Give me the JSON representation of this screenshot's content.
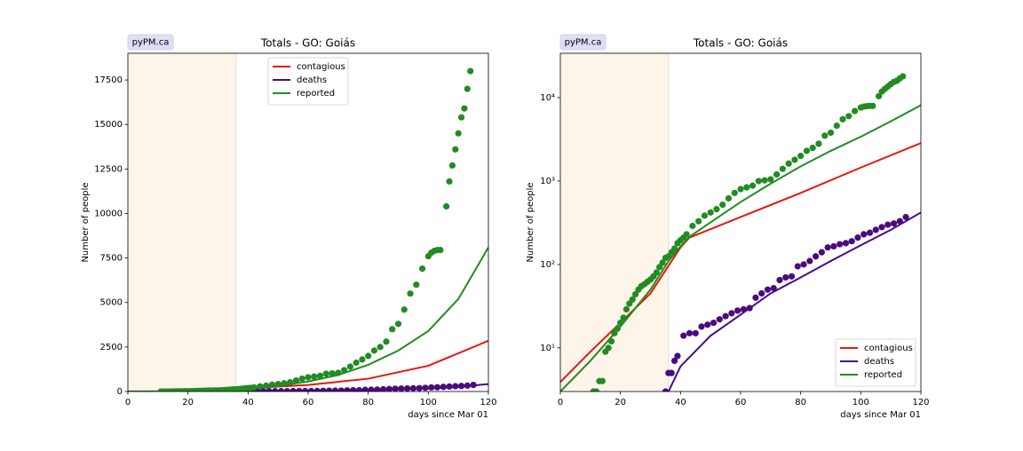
{
  "chart_data": [
    {
      "type": "scatter_line",
      "title": "Totals - GO: Goiás",
      "annotation": "pyPM.ca",
      "xlabel": "days since Mar 01",
      "ylabel": "Number of people",
      "xlim": [
        0,
        120
      ],
      "xticks": [
        0,
        20,
        40,
        60,
        80,
        100,
        120
      ],
      "ylim": [
        0,
        19000
      ],
      "yticks": [
        0,
        2500,
        5000,
        7500,
        10000,
        12500,
        15000,
        17500
      ],
      "log_y": false,
      "legend": "upper center",
      "shade_x": [
        0,
        36
      ],
      "shade_color": "#fdf5ea",
      "series": [
        {
          "name": "contagious",
          "color": "#e8160e",
          "x": [
            0,
            10,
            20,
            30,
            35,
            40,
            43,
            60,
            80,
            100,
            120
          ],
          "values": [
            3.9,
            9,
            20,
            45,
            85,
            160,
            210,
            370,
            720,
            1450,
            2850
          ]
        },
        {
          "name": "deaths",
          "color": "#4b0a7d",
          "x": [
            36,
            40,
            50,
            60,
            70,
            80,
            90,
            100,
            110,
            120
          ],
          "values": [
            3,
            6,
            14,
            25,
            45,
            70,
            110,
            170,
            260,
            420
          ],
          "points_x": [
            35,
            36,
            37,
            38,
            39,
            41,
            43,
            45,
            47,
            49,
            51,
            53,
            55,
            57,
            59,
            61,
            63,
            65,
            67,
            69,
            71,
            73,
            75,
            77,
            79,
            81,
            83,
            85,
            87,
            89,
            91,
            93,
            95,
            97,
            99,
            101,
            103,
            105,
            107,
            109,
            111,
            113,
            115
          ],
          "points": [
            3,
            5,
            5,
            7,
            8,
            14,
            15,
            15,
            18,
            19,
            20,
            22,
            24,
            26,
            28,
            29,
            30,
            40,
            45,
            50,
            52,
            65,
            70,
            72,
            95,
            100,
            110,
            125,
            140,
            160,
            165,
            175,
            180,
            190,
            210,
            230,
            240,
            260,
            280,
            300,
            310,
            330,
            370
          ]
        },
        {
          "name": "reported",
          "color": "#228b22",
          "x": [
            0,
            10,
            20,
            30,
            36,
            40,
            43,
            50,
            60,
            70,
            80,
            90,
            100,
            110,
            120
          ],
          "values": [
            3,
            7,
            18,
            50,
            110,
            165,
            215,
            320,
            560,
            930,
            1500,
            2300,
            3400,
            5200,
            8100
          ],
          "points_x": [
            11,
            12,
            13,
            14,
            15,
            16,
            17,
            18,
            19,
            20,
            21,
            22,
            23,
            24,
            25,
            26,
            27,
            28,
            29,
            30,
            31,
            32,
            33,
            34,
            35,
            36,
            37,
            38,
            39,
            40,
            41,
            42,
            44,
            46,
            48,
            50,
            52,
            54,
            56,
            58,
            60,
            62,
            64,
            66,
            68,
            70,
            72,
            74,
            76,
            78,
            80,
            82,
            84,
            86,
            88,
            90,
            92,
            94,
            96,
            98,
            100,
            101,
            102,
            103,
            104,
            106,
            107,
            108,
            109,
            110,
            111,
            112,
            113,
            114
          ],
          "points": [
            3,
            3,
            4,
            4,
            9,
            10,
            12,
            15,
            17,
            20,
            23,
            29,
            34,
            38,
            44,
            50,
            55,
            58,
            62,
            66,
            72,
            80,
            93,
            105,
            120,
            125,
            140,
            155,
            180,
            195,
            210,
            230,
            290,
            330,
            385,
            420,
            460,
            520,
            620,
            720,
            800,
            840,
            880,
            1000,
            1020,
            1050,
            1200,
            1400,
            1620,
            1800,
            2000,
            2300,
            2500,
            2800,
            3500,
            3800,
            4600,
            5500,
            6000,
            6900,
            7600,
            7800,
            7900,
            7950,
            7950,
            10400,
            11800,
            12700,
            13600,
            14500,
            15400,
            15900,
            17000,
            18000
          ]
        }
      ]
    },
    {
      "type": "scatter_line",
      "title": "Totals - GO: Goiás",
      "annotation": "pyPM.ca",
      "xlabel": "days since Mar 01",
      "ylabel": "Number of people",
      "xlim": [
        0,
        120
      ],
      "xticks": [
        0,
        20,
        40,
        60,
        80,
        100,
        120
      ],
      "ylim": [
        3,
        34000
      ],
      "yticks": [
        {
          "value": 10,
          "label": "10¹"
        },
        {
          "value": 100,
          "label": "10²"
        },
        {
          "value": 1000,
          "label": "10³"
        },
        {
          "value": 10000,
          "label": "10⁴"
        }
      ],
      "log_y": true,
      "legend": "lower right",
      "shade_x": [
        0,
        36
      ],
      "shade_color": "#fdf5ea",
      "series": [
        {
          "name": "contagious",
          "color": "#e8160e",
          "x": [
            0,
            10,
            20,
            30,
            35,
            40,
            43,
            60,
            80,
            100,
            120
          ],
          "values": [
            3.9,
            9,
            20,
            45,
            85,
            160,
            210,
            370,
            720,
            1450,
            2850
          ]
        },
        {
          "name": "deaths",
          "color": "#4b0a7d",
          "x": [
            36,
            40,
            50,
            60,
            70,
            80,
            90,
            100,
            110,
            120
          ],
          "values": [
            3,
            6,
            14,
            25,
            45,
            70,
            110,
            170,
            260,
            420
          ],
          "points_x": [
            35,
            36,
            37,
            38,
            39,
            41,
            43,
            45,
            47,
            49,
            51,
            53,
            55,
            57,
            59,
            61,
            63,
            65,
            67,
            69,
            71,
            73,
            75,
            77,
            79,
            81,
            83,
            85,
            87,
            89,
            91,
            93,
            95,
            97,
            99,
            101,
            103,
            105,
            107,
            109,
            111,
            113,
            115
          ],
          "points": [
            3,
            5,
            5,
            7,
            8,
            14,
            15,
            15,
            18,
            19,
            20,
            22,
            24,
            26,
            28,
            29,
            30,
            40,
            45,
            50,
            52,
            65,
            70,
            72,
            95,
            100,
            110,
            125,
            140,
            160,
            165,
            175,
            180,
            190,
            210,
            230,
            240,
            260,
            280,
            300,
            310,
            330,
            370
          ]
        },
        {
          "name": "reported",
          "color": "#228b22",
          "x": [
            0,
            10,
            20,
            30,
            36,
            40,
            43,
            50,
            60,
            70,
            80,
            90,
            100,
            110,
            120
          ],
          "values": [
            3,
            7,
            18,
            50,
            110,
            165,
            215,
            320,
            560,
            930,
            1500,
            2300,
            3400,
            5200,
            8100
          ],
          "points_x": [
            11,
            12,
            13,
            14,
            15,
            16,
            17,
            18,
            19,
            20,
            21,
            22,
            23,
            24,
            25,
            26,
            27,
            28,
            29,
            30,
            31,
            32,
            33,
            34,
            35,
            36,
            37,
            38,
            39,
            40,
            41,
            42,
            44,
            46,
            48,
            50,
            52,
            54,
            56,
            58,
            60,
            62,
            64,
            66,
            68,
            70,
            72,
            74,
            76,
            78,
            80,
            82,
            84,
            86,
            88,
            90,
            92,
            94,
            96,
            98,
            100,
            101,
            102,
            103,
            104,
            106,
            107,
            108,
            109,
            110,
            111,
            112,
            113,
            114
          ],
          "points": [
            3,
            3,
            4,
            4,
            9,
            10,
            12,
            15,
            17,
            20,
            23,
            29,
            34,
            38,
            44,
            50,
            55,
            58,
            62,
            66,
            72,
            80,
            93,
            105,
            120,
            125,
            140,
            155,
            180,
            195,
            210,
            230,
            290,
            330,
            385,
            420,
            460,
            520,
            620,
            720,
            800,
            840,
            880,
            1000,
            1020,
            1050,
            1200,
            1400,
            1620,
            1800,
            2000,
            2300,
            2500,
            2800,
            3500,
            3800,
            4600,
            5500,
            6000,
            6900,
            7600,
            7800,
            7900,
            7950,
            7950,
            10400,
            11800,
            12700,
            13600,
            14500,
            15400,
            15900,
            17000,
            18000
          ]
        }
      ]
    }
  ]
}
